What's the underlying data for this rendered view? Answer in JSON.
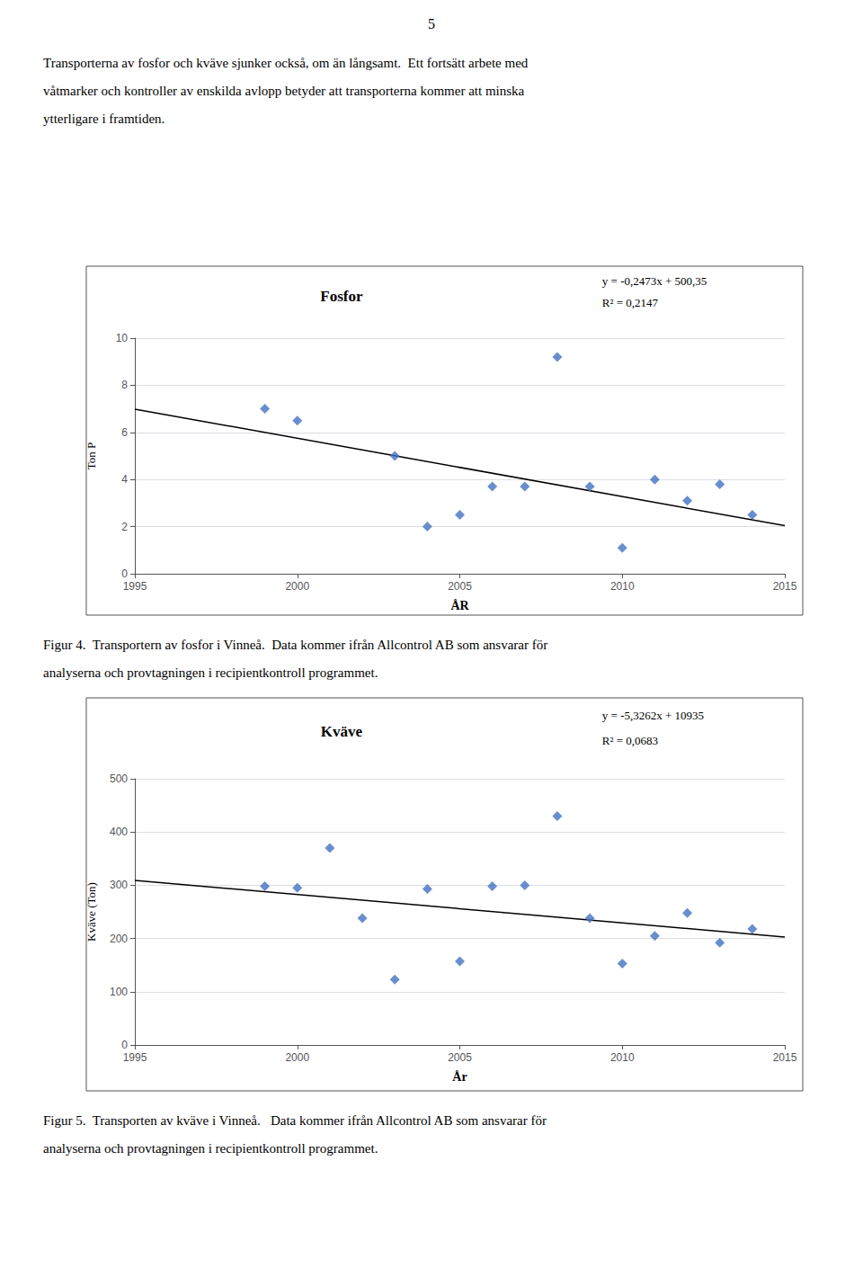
{
  "page_number": "5",
  "intro_text": [
    "Transporterna av fosfor och kväve sjunker också, om än långsamt.  Ett fortsätt arbete med",
    "våtmarker och kontroller av enskilda avlopp betyder att transporterna kommer att minska",
    "ytterligare i framtiden."
  ],
  "chart_data": [
    {
      "type": "scatter",
      "title": "Fosfor",
      "annotations": [
        "y = -0,2473x + 500,35",
        "R² = 0,2147"
      ],
      "xlabel": "ÅR",
      "ylabel": "Ton P",
      "xlim": [
        1995,
        2015
      ],
      "ylim": [
        0,
        10
      ],
      "xticks": [
        1995,
        2000,
        2005,
        2010,
        2015
      ],
      "yticks": [
        0,
        2,
        4,
        6,
        8,
        10
      ],
      "grid": true,
      "series": [
        {
          "type": "scatter",
          "color": "#4472C4",
          "marker": "diamond",
          "x": [
            1999,
            2000,
            2003,
            2004,
            2005,
            2006,
            2007,
            2008,
            2009,
            2010,
            2011,
            2012,
            2013,
            2014
          ],
          "values": [
            7.0,
            6.5,
            5.0,
            2.0,
            2.5,
            3.7,
            3.7,
            9.2,
            3.7,
            1.1,
            4.0,
            3.1,
            3.8,
            2.5
          ]
        },
        {
          "type": "line",
          "color": "#000000",
          "line_style": "solid",
          "x": [
            1995,
            2015
          ],
          "values": [
            6.9865,
            2.0405
          ]
        }
      ],
      "caption": [
        "Figur 4.  Transportern av fosfor i Vinneå.  Data kommer ifrån Allcontrol AB som ansvarar för",
        "analyserna och provtagningen i recipientkontroll programmet."
      ]
    },
    {
      "type": "scatter",
      "title": "Kväve",
      "annotations": [
        "y = -5,3262x + 10935",
        "R² = 0,0683"
      ],
      "xlabel": "År",
      "ylabel": "Kväve (Ton)",
      "xlim": [
        1995,
        2015
      ],
      "ylim": [
        0,
        500
      ],
      "xticks": [
        1995,
        2000,
        2005,
        2010,
        2015
      ],
      "yticks": [
        0,
        100,
        200,
        300,
        400,
        500
      ],
      "grid": true,
      "series": [
        {
          "type": "scatter",
          "color": "#4472C4",
          "marker": "diamond",
          "x": [
            1999,
            2000,
            2001,
            2002,
            2003,
            2004,
            2005,
            2006,
            2007,
            2008,
            2009,
            2010,
            2011,
            2012,
            2013,
            2014
          ],
          "values": [
            298,
            295,
            370,
            238,
            123,
            293,
            157,
            298,
            300,
            430,
            238,
            153,
            205,
            248,
            192,
            218
          ]
        },
        {
          "type": "line",
          "color": "#000000",
          "line_style": "solid",
          "x": [
            1995,
            2015
          ],
          "values": [
            309.231,
            202.707
          ]
        }
      ],
      "caption": [
        "Figur 5.  Transporten av kväve i Vinneå.   Data kommer ifrån Allcontrol AB som ansvarar för",
        "analyserna och provtagningen i recipientkontroll programmet."
      ]
    }
  ]
}
